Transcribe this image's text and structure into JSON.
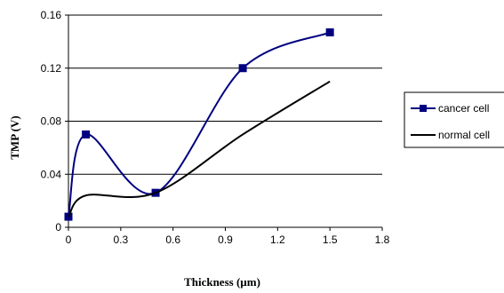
{
  "chart_data": {
    "type": "line",
    "xlabel": "Thickness (µm)",
    "ylabel": "TMP (V)",
    "xlim": [
      0,
      1.8
    ],
    "ylim": [
      0,
      0.16
    ],
    "x_ticks": [
      "0",
      "0.3",
      "0.6",
      "0.9",
      "1.2",
      "1.5",
      "1.8"
    ],
    "y_ticks": [
      "0",
      "0.04",
      "0.08",
      "0.12",
      "0.16"
    ],
    "grid": "horizontal",
    "legend_position": "right",
    "series": [
      {
        "name": "cancer cell",
        "color": "#000080",
        "marker": "square",
        "smooth": true,
        "x": [
          0,
          0.1,
          0.5,
          1.0,
          1.5
        ],
        "y": [
          0.008,
          0.07,
          0.026,
          0.12,
          0.147
        ]
      },
      {
        "name": "normal cell",
        "color": "#000000",
        "marker": "none",
        "smooth": true,
        "x": [
          0,
          0.1,
          0.5,
          1.0,
          1.5
        ],
        "y": [
          0.008,
          0.024,
          0.026,
          0.07,
          0.11
        ]
      }
    ]
  }
}
